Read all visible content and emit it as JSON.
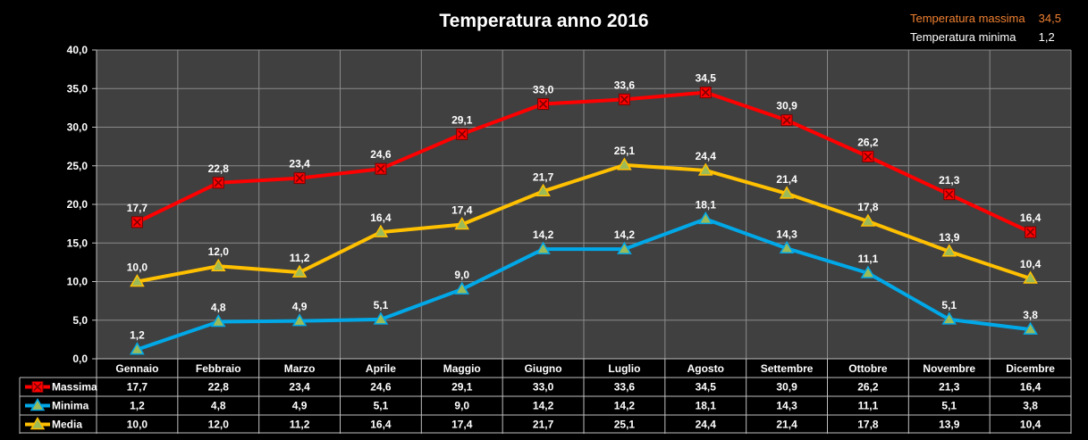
{
  "chart_title": "Temperatura anno 2016",
  "summary": [
    {
      "label": "Temperatura massima",
      "value": "34,5",
      "color": "#f08030"
    },
    {
      "label": "Temperatura minima",
      "value": "1,2",
      "color": "#ffffff"
    }
  ],
  "chart_data": {
    "type": "line",
    "title": "Temperatura anno 2016",
    "categories": [
      "Gennaio",
      "Febbraio",
      "Marzo",
      "Aprile",
      "Maggio",
      "Giugno",
      "Luglio",
      "Agosto",
      "Settembre",
      "Ottobre",
      "Novembre",
      "Dicembre"
    ],
    "ylim": [
      0,
      40
    ],
    "yticks": [
      0,
      5,
      10,
      15,
      20,
      25,
      30,
      35,
      40
    ],
    "grid": true,
    "data_table": true,
    "series": [
      {
        "name": "Massima",
        "color": "#ff0000",
        "marker": "square-x",
        "values": [
          17.7,
          22.8,
          23.4,
          24.6,
          29.1,
          33.0,
          33.6,
          34.5,
          30.9,
          26.2,
          21.3,
          16.4
        ]
      },
      {
        "name": "Minima",
        "color": "#00a8e8",
        "marker": "triangle",
        "values": [
          1.2,
          4.8,
          4.9,
          5.1,
          9.0,
          14.2,
          14.2,
          18.1,
          14.3,
          11.1,
          5.1,
          3.8
        ]
      },
      {
        "name": "Media",
        "color": "#ffc000",
        "marker": "triangle",
        "values": [
          10.0,
          12.0,
          11.2,
          16.4,
          17.4,
          21.7,
          25.1,
          24.4,
          21.4,
          17.8,
          13.9,
          10.4
        ]
      }
    ]
  }
}
